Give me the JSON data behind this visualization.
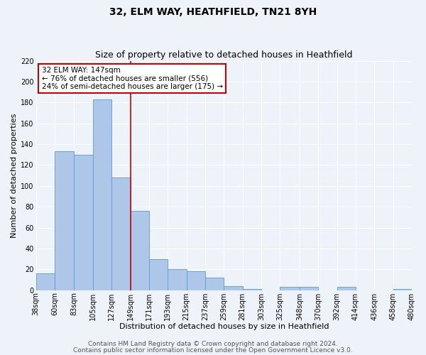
{
  "title": "32, ELM WAY, HEATHFIELD, TN21 8YH",
  "subtitle": "Size of property relative to detached houses in Heathfield",
  "xlabel": "Distribution of detached houses by size in Heathfield",
  "ylabel": "Number of detached properties",
  "bar_left_edges": [
    38,
    60,
    83,
    105,
    127,
    149,
    171,
    193,
    215,
    237,
    259,
    281,
    303,
    325,
    348,
    370,
    392,
    414,
    436,
    458
  ],
  "bar_widths": [
    22,
    23,
    22,
    22,
    22,
    22,
    22,
    22,
    22,
    22,
    22,
    22,
    22,
    23,
    22,
    22,
    22,
    22,
    22,
    22
  ],
  "bar_heights": [
    16,
    133,
    130,
    183,
    108,
    76,
    30,
    20,
    18,
    12,
    4,
    1,
    0,
    3,
    3,
    0,
    3,
    0,
    0,
    1
  ],
  "bar_color": "#aec6e8",
  "bar_edge_color": "#5b9bd5",
  "tick_labels": [
    "38sqm",
    "60sqm",
    "83sqm",
    "105sqm",
    "127sqm",
    "149sqm",
    "171sqm",
    "193sqm",
    "215sqm",
    "237sqm",
    "259sqm",
    "281sqm",
    "303sqm",
    "325sqm",
    "348sqm",
    "370sqm",
    "392sqm",
    "414sqm",
    "436sqm",
    "458sqm",
    "480sqm"
  ],
  "vline_x": 149,
  "vline_color": "#cc0000",
  "ylim": [
    0,
    220
  ],
  "yticks": [
    0,
    20,
    40,
    60,
    80,
    100,
    120,
    140,
    160,
    180,
    200,
    220
  ],
  "annotation_title": "32 ELM WAY: 147sqm",
  "annotation_line1": "← 76% of detached houses are smaller (556)",
  "annotation_line2": "24% of semi-detached houses are larger (175) →",
  "annotation_box_color": "#ffffff",
  "annotation_box_edge_color": "#cc0000",
  "footnote1": "Contains HM Land Registry data © Crown copyright and database right 2024.",
  "footnote2": "Contains public sector information licensed under the Open Government Licence v3.0.",
  "background_color": "#eef2f9",
  "grid_color": "#ffffff",
  "title_fontsize": 10,
  "subtitle_fontsize": 9,
  "axis_label_fontsize": 8,
  "tick_fontsize": 7,
  "annotation_fontsize": 7.5,
  "footnote_fontsize": 6.5
}
